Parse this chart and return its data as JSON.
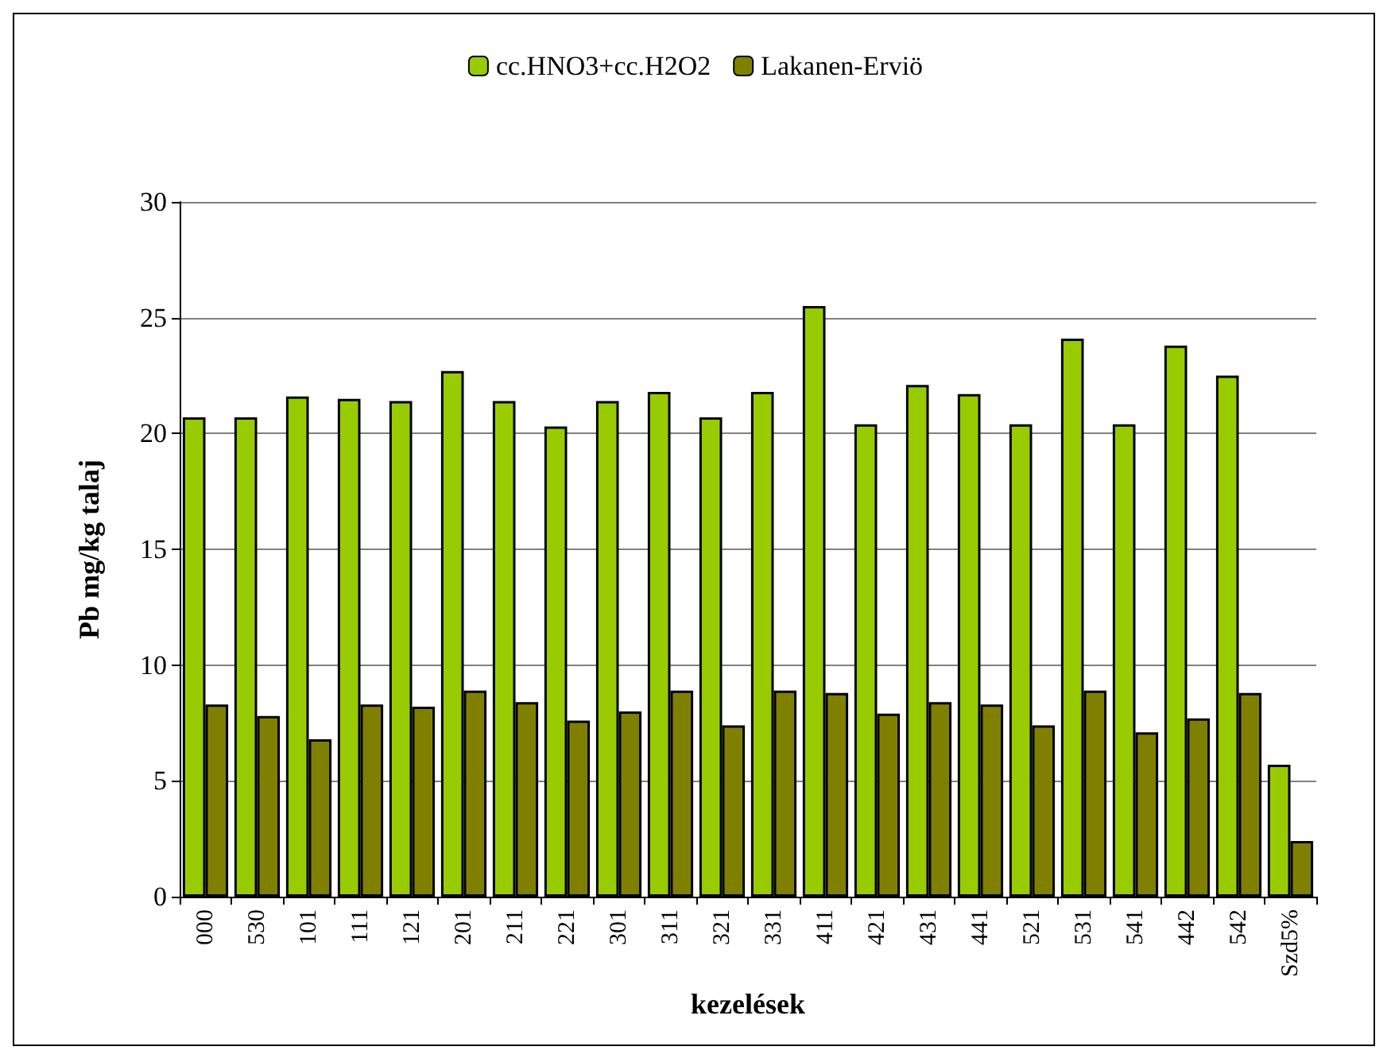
{
  "chart_data": {
    "type": "bar",
    "xlabel": "kezelések",
    "ylabel": "Pb mg/kg talaj",
    "categories": [
      "000",
      "530",
      "101",
      "111",
      "121",
      "201",
      "211",
      "221",
      "301",
      "311",
      "321",
      "331",
      "411",
      "421",
      "431",
      "441",
      "521",
      "531",
      "541",
      "442",
      "542",
      "Szd5%"
    ],
    "series": [
      {
        "name": "cc.HNO3+cc.H2O2",
        "color": "#99cc00",
        "values": [
          20.7,
          20.7,
          21.6,
          21.5,
          21.4,
          22.7,
          21.4,
          20.3,
          21.4,
          21.8,
          20.7,
          21.8,
          25.5,
          20.4,
          22.1,
          21.7,
          20.4,
          24.1,
          20.4,
          23.8,
          22.5,
          5.7
        ]
      },
      {
        "name": "Lakanen-Erviö",
        "color": "#808000",
        "values": [
          8.3,
          7.8,
          6.8,
          8.3,
          8.2,
          8.9,
          8.4,
          7.6,
          8.0,
          8.9,
          7.4,
          8.9,
          8.8,
          7.9,
          8.4,
          8.3,
          7.4,
          8.9,
          7.1,
          7.7,
          8.8,
          2.4
        ]
      }
    ],
    "ylim": [
      0,
      30
    ],
    "yticks": [
      0,
      5,
      10,
      15,
      20,
      25,
      30
    ],
    "grid": "y",
    "legend": "top"
  }
}
